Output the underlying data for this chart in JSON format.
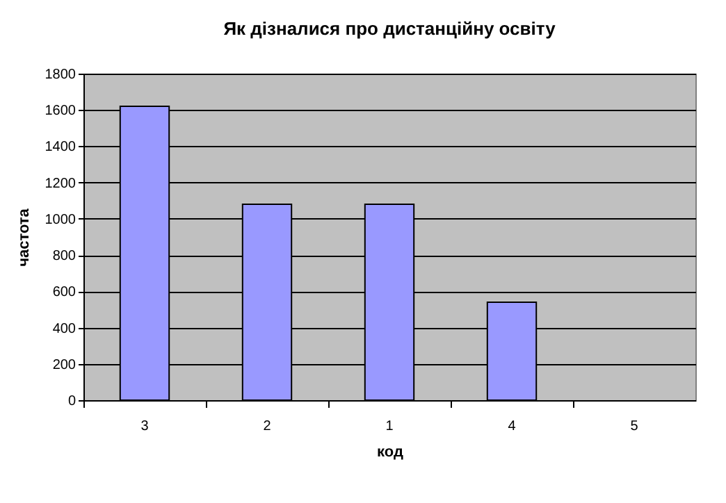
{
  "chart_data": {
    "type": "bar",
    "title": "Як дізналися про дистанційну освіту",
    "xlabel": "код",
    "ylabel": "частота",
    "categories": [
      "3",
      "2",
      "1",
      "4",
      "5"
    ],
    "series": [
      {
        "color": "#9999ff",
        "values": [
          1620,
          1080,
          1080,
          540,
          null
        ]
      }
    ],
    "ylim": [
      0,
      1800
    ],
    "yticks": [
      0,
      200,
      400,
      600,
      800,
      1000,
      1200,
      1400,
      1600,
      1800
    ],
    "grid": "y",
    "legend": false
  }
}
